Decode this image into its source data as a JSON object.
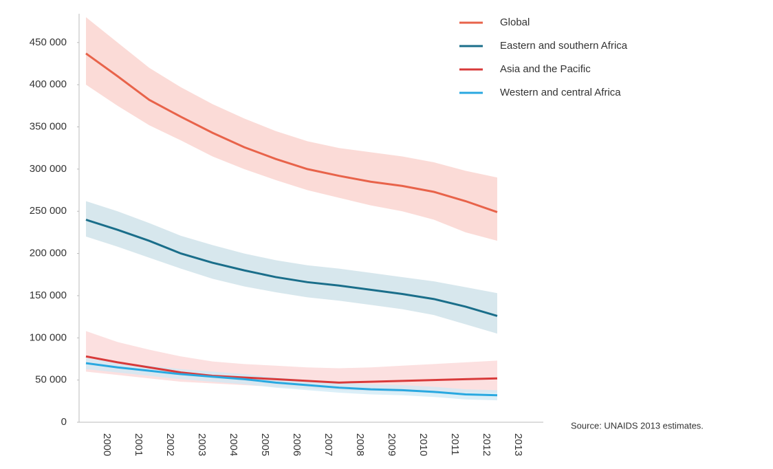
{
  "chart_data": {
    "type": "line",
    "source": "Source: UNAIDS 2013 estimates.",
    "x": [
      2000,
      2001,
      2002,
      2003,
      2004,
      2005,
      2006,
      2007,
      2008,
      2009,
      2010,
      2011,
      2012,
      2013
    ],
    "xlim": [
      2000,
      2013
    ],
    "ylim": [
      0,
      480000
    ],
    "yticks": [
      0,
      {
        "value": 50000,
        "label": "50 000"
      },
      {
        "value": 100000,
        "label": "100 000"
      },
      {
        "value": 150000,
        "label": "150 000"
      },
      {
        "value": 200000,
        "label": "200 000"
      },
      {
        "value": 250000,
        "label": "250 000"
      },
      {
        "value": 300000,
        "label": "300 000"
      },
      {
        "value": 350000,
        "label": "350 000"
      },
      {
        "value": 400000,
        "label": "400 000"
      },
      {
        "value": 450000,
        "label": "450 000"
      }
    ],
    "series": [
      {
        "name": "Global",
        "color": "#e8634a",
        "band_color": "#f9cfc9",
        "values": [
          437000,
          410000,
          382000,
          362000,
          343000,
          326000,
          312000,
          300000,
          292000,
          285000,
          280000,
          273000,
          262000,
          249000
        ],
        "upper": [
          480000,
          450000,
          420000,
          397000,
          377000,
          360000,
          345000,
          333000,
          325000,
          320000,
          315000,
          308000,
          298000,
          290000
        ],
        "lower": [
          400000,
          375000,
          352000,
          334000,
          315000,
          300000,
          287000,
          275000,
          266000,
          257000,
          250000,
          240000,
          225000,
          215000
        ]
      },
      {
        "name": "Eastern and southern Africa",
        "color": "#1a6e8a",
        "band_color": "#c9dfe7",
        "values": [
          240000,
          228000,
          215000,
          200000,
          189000,
          180000,
          172000,
          166000,
          162000,
          157000,
          152000,
          146000,
          137000,
          126000
        ],
        "upper": [
          262000,
          250000,
          236000,
          221000,
          210000,
          200000,
          192000,
          186000,
          182000,
          177000,
          172000,
          167000,
          160000,
          153000
        ],
        "lower": [
          220000,
          208000,
          195000,
          182000,
          170000,
          161000,
          154000,
          148000,
          144000,
          139000,
          134000,
          127000,
          116000,
          105000
        ]
      },
      {
        "name": "Asia and the Pacific",
        "color": "#d83a3a",
        "band_color": "#fbd6d6",
        "values": [
          78000,
          71000,
          65000,
          59000,
          55000,
          53000,
          51000,
          49000,
          47000,
          48000,
          49000,
          50000,
          51000,
          52000
        ],
        "upper": [
          108000,
          95000,
          86000,
          78000,
          72000,
          69000,
          67000,
          65000,
          64000,
          65000,
          67000,
          69000,
          71000,
          73000
        ],
        "lower": [
          60000,
          56000,
          52000,
          48000,
          46000,
          44000,
          42000,
          40000,
          38000,
          37000,
          36000,
          35000,
          35000,
          35000
        ]
      },
      {
        "name": "Western and central Africa",
        "color": "#29a8e0",
        "band_color": "#cfe9f5",
        "values": [
          70000,
          65000,
          61000,
          57000,
          54000,
          51000,
          47000,
          44000,
          41000,
          39000,
          38000,
          36000,
          33000,
          32000
        ],
        "upper": [
          76000,
          71000,
          67000,
          63000,
          60000,
          57000,
          53000,
          50000,
          47000,
          45000,
          44000,
          42000,
          39000,
          38000
        ],
        "lower": [
          63000,
          59000,
          55000,
          51000,
          48000,
          45000,
          41000,
          38000,
          35000,
          33000,
          32000,
          30000,
          27000,
          26000
        ]
      }
    ]
  }
}
